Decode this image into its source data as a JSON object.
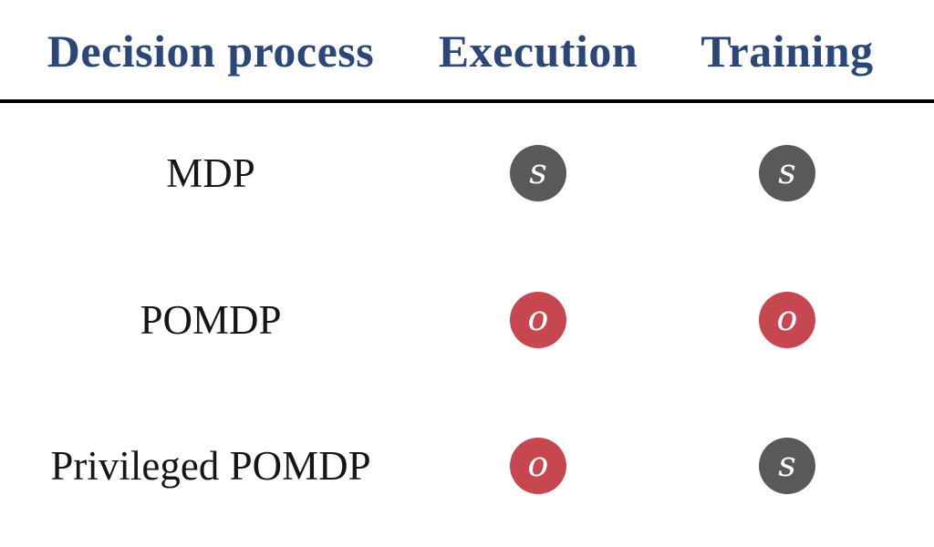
{
  "figure": {
    "columns": [
      {
        "label": "Decision process"
      },
      {
        "label": "Execution"
      },
      {
        "label": "Training"
      }
    ],
    "rows": [
      {
        "label": "MDP",
        "cells": [
          {
            "symbol": "s",
            "bg": "#595959"
          },
          {
            "symbol": "s",
            "bg": "#595959"
          }
        ]
      },
      {
        "label": "POMDP",
        "cells": [
          {
            "symbol": "o",
            "bg": "#C6474F"
          },
          {
            "symbol": "o",
            "bg": "#C6474F"
          }
        ]
      },
      {
        "label": "Privileged POMDP",
        "cells": [
          {
            "symbol": "o",
            "bg": "#C6474F"
          },
          {
            "symbol": "s",
            "bg": "#595959"
          }
        ]
      }
    ]
  },
  "colors": {
    "header_text": "#2A4777",
    "row_label_text": "#161616",
    "divider": "#000000",
    "background": "#FFFFFF",
    "badge_gray": "#595959",
    "badge_red": "#C6474F",
    "badge_letter": "#FFFFFF"
  }
}
